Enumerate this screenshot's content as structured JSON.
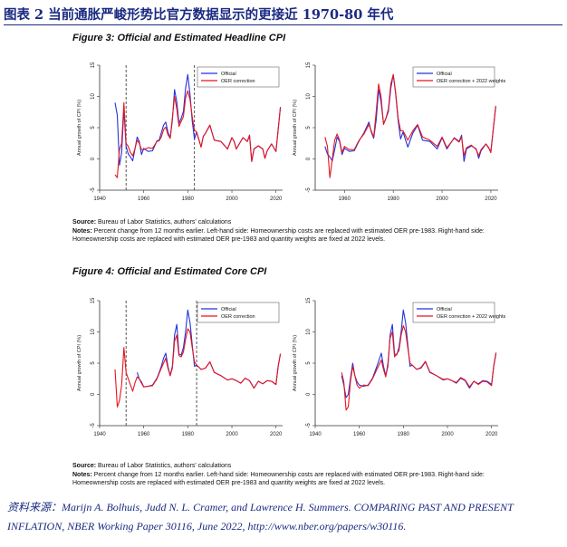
{
  "page": {
    "title": "图表 2   当前通胀严峻形势比官方数据显示的更接近 1970-80 年代",
    "source": "资料来源：Marijn A. Bolhuis, Judd N. L. Cramer, and Lawrence H. Summers. COMPARING PAST AND PRESENT INFLATION, NBER Working Paper 30116, June 2022, http://www.nber.org/papers/w30116."
  },
  "figures": [
    {
      "title": "Figure 3: Official and Estimated Headline CPI",
      "source_label": "Source:",
      "source_text": "Bureau of Labor Statistics, authors' calculations",
      "notes_label": "Notes:",
      "notes_text": "Percent change from 12 months earlier. Left-hand side: Homeownership costs are replaced with estimated OER pre-1983. Right-hand side: Homeownership costs are replaced with estimated OER pre-1983 and quantity weights are fixed at 2022 levels."
    },
    {
      "title": "Figure 4: Official and Estimated Core CPI",
      "source_label": "Source:",
      "source_text": "Bureau of Labor Statistics, authors' calculations",
      "notes_label": "Notes:",
      "notes_text": "Percent change from 12 months earlier. Left-hand side: Homeownership costs are replaced with estimated OER pre-1983. Right-hand side: Homeownership costs are replaced with estimated OER pre-1983 and quantity weights are fixed at 2022 levels."
    }
  ],
  "colors": {
    "official": "#2233dd",
    "estimated": "#e8141c",
    "title": "#1a2a80",
    "axis": "#333333",
    "dashed": "#444444"
  },
  "chart_data": [
    {
      "id": "fig3-left",
      "type": "line",
      "ylabel": "Annual growth of CPI (%)",
      "xlim": [
        1940,
        2023
      ],
      "ylim": [
        -5,
        15
      ],
      "xticks": [
        1940,
        1960,
        1980,
        2000,
        2020
      ],
      "yticks": [
        -5,
        0,
        5,
        10,
        15
      ],
      "vlines": [
        1952,
        1983
      ],
      "legend_position": "top-right",
      "series": [
        {
          "name": "Official",
          "color": "#2233dd",
          "x": [
            1947,
            1948,
            1949,
            1950,
            1951,
            1952,
            1953,
            1954,
            1955,
            1956,
            1957,
            1958,
            1959,
            1960,
            1962,
            1964,
            1966,
            1967,
            1968,
            1969,
            1970,
            1971,
            1972,
            1973,
            1974,
            1975,
            1976,
            1977,
            1978,
            1979,
            1980,
            1981,
            1982,
            1983,
            1984,
            1986,
            1987,
            1988,
            1990,
            1991,
            1992,
            1995,
            1998,
            2000,
            2001,
            2002,
            2005,
            2007,
            2008,
            2009,
            2010,
            2012,
            2014,
            2015,
            2016,
            2018,
            2019,
            2020,
            2021,
            2022
          ],
          "y": [
            9,
            7,
            -1,
            1,
            8,
            2,
            0.8,
            0.3,
            -0.3,
            1.5,
            3.5,
            2.8,
            0.7,
            1.7,
            1.2,
            1.3,
            2.9,
            3,
            4.2,
            5.4,
            5.9,
            4.3,
            3.3,
            6.2,
            11.1,
            9.1,
            5.7,
            6.5,
            7.6,
            11.3,
            13.5,
            10.3,
            6.1,
            3.2,
            4.3,
            1.9,
            3.6,
            4.1,
            5.4,
            4.2,
            3,
            2.8,
            1.6,
            3.4,
            2.8,
            1.6,
            3.4,
            2.8,
            3.8,
            -0.4,
            1.6,
            2.1,
            1.6,
            0.1,
            1.3,
            2.4,
            1.8,
            1.2,
            4.7,
            8.3
          ]
        },
        {
          "name": "OER correction",
          "color": "#e8141c",
          "x": [
            1947,
            1948,
            1949,
            1950,
            1951,
            1952,
            1953,
            1954,
            1955,
            1956,
            1957,
            1958,
            1959,
            1960,
            1962,
            1964,
            1966,
            1967,
            1968,
            1969,
            1970,
            1971,
            1972,
            1973,
            1974,
            1975,
            1976,
            1977,
            1978,
            1979,
            1980,
            1981,
            1982,
            1983,
            1984,
            1986,
            1987,
            1988,
            1990,
            1991,
            1992,
            1995,
            1998,
            2000,
            2001,
            2002,
            2005,
            2007,
            2008,
            2009,
            2010,
            2012,
            2014,
            2015,
            2016,
            2018,
            2019,
            2020,
            2021,
            2022
          ],
          "y": [
            -2.5,
            -3,
            1.5,
            2.5,
            9,
            2.5,
            2,
            1,
            0.5,
            1.6,
            3,
            2.5,
            1.5,
            1.5,
            1.8,
            1.7,
            2.8,
            2.9,
            3.5,
            4.7,
            5.1,
            3.9,
            3.3,
            6.6,
            10,
            8,
            5.2,
            6,
            6.8,
            9.8,
            10.9,
            9.5,
            6.8,
            4.6,
            4.3,
            1.9,
            3.6,
            4.1,
            5.4,
            4.2,
            3,
            2.8,
            1.6,
            3.4,
            2.8,
            1.6,
            3.4,
            2.8,
            3.8,
            -0.4,
            1.6,
            2.1,
            1.6,
            0.1,
            1.3,
            2.4,
            1.8,
            1.2,
            4.7,
            8.3
          ]
        }
      ]
    },
    {
      "id": "fig3-right",
      "type": "line",
      "ylabel": "Annual growth of CPI (%)",
      "xlim": [
        1948,
        2023
      ],
      "ylim": [
        -5,
        15
      ],
      "xticks": [
        1960,
        1980,
        2000,
        2020
      ],
      "yticks": [
        -5,
        0,
        5,
        10,
        15
      ],
      "vlines": [],
      "legend_position": "top-right",
      "series": [
        {
          "name": "Official",
          "color": "#2233dd",
          "x": [
            1952,
            1953,
            1954,
            1955,
            1956,
            1957,
            1958,
            1959,
            1960,
            1962,
            1964,
            1966,
            1968,
            1970,
            1971,
            1972,
            1973,
            1974,
            1975,
            1976,
            1977,
            1978,
            1979,
            1980,
            1981,
            1982,
            1983,
            1984,
            1986,
            1988,
            1990,
            1992,
            1995,
            1998,
            2000,
            2002,
            2005,
            2007,
            2008,
            2009,
            2010,
            2012,
            2014,
            2015,
            2016,
            2018,
            2019,
            2020,
            2021,
            2022
          ],
          "y": [
            2,
            0.8,
            0.3,
            -0.3,
            1.5,
            3.5,
            2.8,
            0.7,
            1.7,
            1.2,
            1.3,
            2.9,
            4.2,
            5.9,
            4.3,
            3.3,
            6.2,
            11.1,
            9.1,
            5.7,
            6.5,
            7.6,
            11.3,
            13.5,
            10.3,
            6.1,
            3.2,
            4.3,
            1.9,
            4.1,
            5.4,
            3,
            2.8,
            1.6,
            3.4,
            1.6,
            3.4,
            2.8,
            3.8,
            -0.4,
            1.6,
            2.1,
            1.6,
            0.1,
            1.3,
            2.4,
            1.8,
            1.2,
            4.7,
            8.3
          ]
        },
        {
          "name": "OER correction + 2022 weights",
          "color": "#e8141c",
          "x": [
            1952,
            1953,
            1954,
            1955,
            1956,
            1957,
            1958,
            1959,
            1960,
            1962,
            1964,
            1966,
            1968,
            1970,
            1971,
            1972,
            1973,
            1974,
            1975,
            1976,
            1977,
            1978,
            1979,
            1980,
            1981,
            1982,
            1983,
            1984,
            1986,
            1988,
            1990,
            1992,
            1995,
            1998,
            2000,
            2002,
            2005,
            2007,
            2008,
            2009,
            2010,
            2012,
            2014,
            2015,
            2016,
            2018,
            2019,
            2020,
            2021,
            2022
          ],
          "y": [
            3.5,
            2,
            -3,
            0,
            3,
            4,
            3,
            1,
            2,
            1.5,
            1.5,
            3,
            4,
            5.5,
            4.5,
            3.5,
            7.5,
            12,
            10,
            5.5,
            6.5,
            8,
            12,
            13.5,
            10.5,
            6.5,
            4.5,
            4.5,
            3,
            4.5,
            5.5,
            3.5,
            3,
            2,
            3.5,
            1.8,
            3.3,
            2.7,
            3.5,
            0.5,
            1.8,
            2.2,
            1.5,
            0.5,
            1.5,
            2.4,
            1.9,
            1,
            4.8,
            8.5
          ]
        }
      ]
    },
    {
      "id": "fig4-left",
      "type": "line",
      "ylabel": "Annual growth of CPI (%)",
      "xlim": [
        1940,
        2023
      ],
      "ylim": [
        -5,
        15
      ],
      "xticks": [
        1940,
        1960,
        1980,
        2000,
        2020
      ],
      "yticks": [
        -5,
        0,
        5,
        10,
        15
      ],
      "vlines": [
        1952,
        1984
      ],
      "legend_position": "top-right",
      "series": [
        {
          "name": "Official",
          "color": "#2233dd",
          "x": [
            1957,
            1958,
            1959,
            1960,
            1962,
            1964,
            1966,
            1967,
            1968,
            1969,
            1970,
            1971,
            1972,
            1973,
            1974,
            1975,
            1976,
            1977,
            1978,
            1979,
            1980,
            1981,
            1982,
            1983,
            1984,
            1986,
            1988,
            1990,
            1992,
            1995,
            1998,
            2000,
            2002,
            2004,
            2006,
            2008,
            2010,
            2012,
            2014,
            2016,
            2018,
            2020,
            2021,
            2022
          ],
          "y": [
            3.5,
            2.5,
            2,
            1.2,
            1.3,
            1.5,
            2.6,
            3.5,
            4.5,
            5.8,
            6.6,
            4.5,
            3,
            4.5,
            9.5,
            11.2,
            6.5,
            6.3,
            7.5,
            10,
            13.5,
            11.5,
            8,
            4.5,
            4.7,
            4,
            4.2,
            5.2,
            3.5,
            3,
            2.3,
            2.5,
            2.2,
            1.8,
            2.6,
            2.2,
            1,
            2.1,
            1.7,
            2.2,
            2.1,
            1.6,
            4.5,
            6.5
          ]
        },
        {
          "name": "OER correction",
          "color": "#e8141c",
          "x": [
            1947,
            1948,
            1949,
            1950,
            1951,
            1952,
            1953,
            1954,
            1955,
            1956,
            1957,
            1958,
            1959,
            1960,
            1962,
            1964,
            1966,
            1968,
            1970,
            1971,
            1972,
            1973,
            1974,
            1975,
            1976,
            1977,
            1978,
            1979,
            1980,
            1981,
            1982,
            1983,
            1984,
            1986,
            1988,
            1990,
            1992,
            1995,
            1998,
            2000,
            2002,
            2004,
            2006,
            2008,
            2010,
            2012,
            2014,
            2016,
            2018,
            2020,
            2021,
            2022
          ],
          "y": [
            4,
            -2,
            -1,
            1.5,
            7.5,
            3.5,
            2.5,
            1.5,
            0.5,
            1.8,
            2.8,
            2.5,
            1.8,
            1.2,
            1.3,
            1.4,
            2.5,
            4.2,
            5.8,
            4.2,
            3,
            4.2,
            8.5,
            9.5,
            6.2,
            6,
            6.8,
            8.8,
            10.5,
            10,
            7.5,
            5.2,
            4.7,
            4,
            4.2,
            5.2,
            3.5,
            3,
            2.3,
            2.5,
            2.2,
            1.8,
            2.6,
            2.2,
            1,
            2.1,
            1.7,
            2.2,
            2.1,
            1.6,
            4.5,
            6.5
          ]
        }
      ]
    },
    {
      "id": "fig4-right",
      "type": "line",
      "ylabel": "Annual growth of CPI (%)",
      "xlim": [
        1940,
        2023
      ],
      "ylim": [
        -5,
        15
      ],
      "xticks": [
        1940,
        1960,
        1980,
        2000,
        2020
      ],
      "yticks": [
        -5,
        0,
        5,
        10,
        15
      ],
      "vlines": [],
      "legend_position": "top-right",
      "series": [
        {
          "name": "Official",
          "color": "#2233dd",
          "x": [
            1952,
            1953,
            1954,
            1955,
            1956,
            1957,
            1958,
            1959,
            1960,
            1962,
            1964,
            1966,
            1968,
            1970,
            1971,
            1972,
            1973,
            1974,
            1975,
            1976,
            1977,
            1978,
            1979,
            1980,
            1981,
            1982,
            1983,
            1984,
            1986,
            1988,
            1990,
            1992,
            1995,
            1998,
            2000,
            2002,
            2004,
            2006,
            2008,
            2010,
            2012,
            2014,
            2016,
            2018,
            2020,
            2021,
            2022
          ],
          "y": [
            3,
            1.5,
            -0.5,
            0,
            2.5,
            5,
            3,
            2,
            1.5,
            1.3,
            1.5,
            2.6,
            4.5,
            6.6,
            4.5,
            3,
            4.5,
            9.5,
            11.2,
            6.5,
            6.3,
            7.5,
            10,
            13.5,
            11.5,
            8,
            4.5,
            4.7,
            4,
            4.2,
            5.2,
            3.5,
            3,
            2.3,
            2.5,
            2.2,
            1.8,
            2.6,
            2.2,
            1,
            2.1,
            1.7,
            2.2,
            2.1,
            1.6,
            4.5,
            6.5
          ]
        },
        {
          "name": "OER correction + 2022 weights",
          "color": "#e8141c",
          "x": [
            1952,
            1953,
            1954,
            1955,
            1956,
            1957,
            1958,
            1959,
            1960,
            1962,
            1964,
            1966,
            1968,
            1970,
            1971,
            1972,
            1973,
            1974,
            1975,
            1976,
            1977,
            1978,
            1979,
            1980,
            1981,
            1982,
            1983,
            1984,
            1986,
            1988,
            1990,
            1992,
            1995,
            1998,
            2000,
            2002,
            2004,
            2006,
            2008,
            2010,
            2012,
            2014,
            2016,
            2018,
            2020,
            2021,
            2022
          ],
          "y": [
            3.5,
            2,
            -2.5,
            -2,
            2,
            4.5,
            3,
            1.5,
            1,
            1.5,
            1.4,
            2.5,
            4,
            5.5,
            4,
            2.8,
            5,
            9,
            10,
            6,
            6.5,
            7,
            9.5,
            11,
            10,
            7.5,
            5,
            4.7,
            4,
            4.3,
            5.3,
            3.6,
            3,
            2.4,
            2.5,
            2.2,
            1.9,
            2.7,
            2.3,
            1.2,
            2.1,
            1.6,
            2.1,
            2,
            1.4,
            4.6,
            6.7
          ]
        }
      ]
    }
  ]
}
